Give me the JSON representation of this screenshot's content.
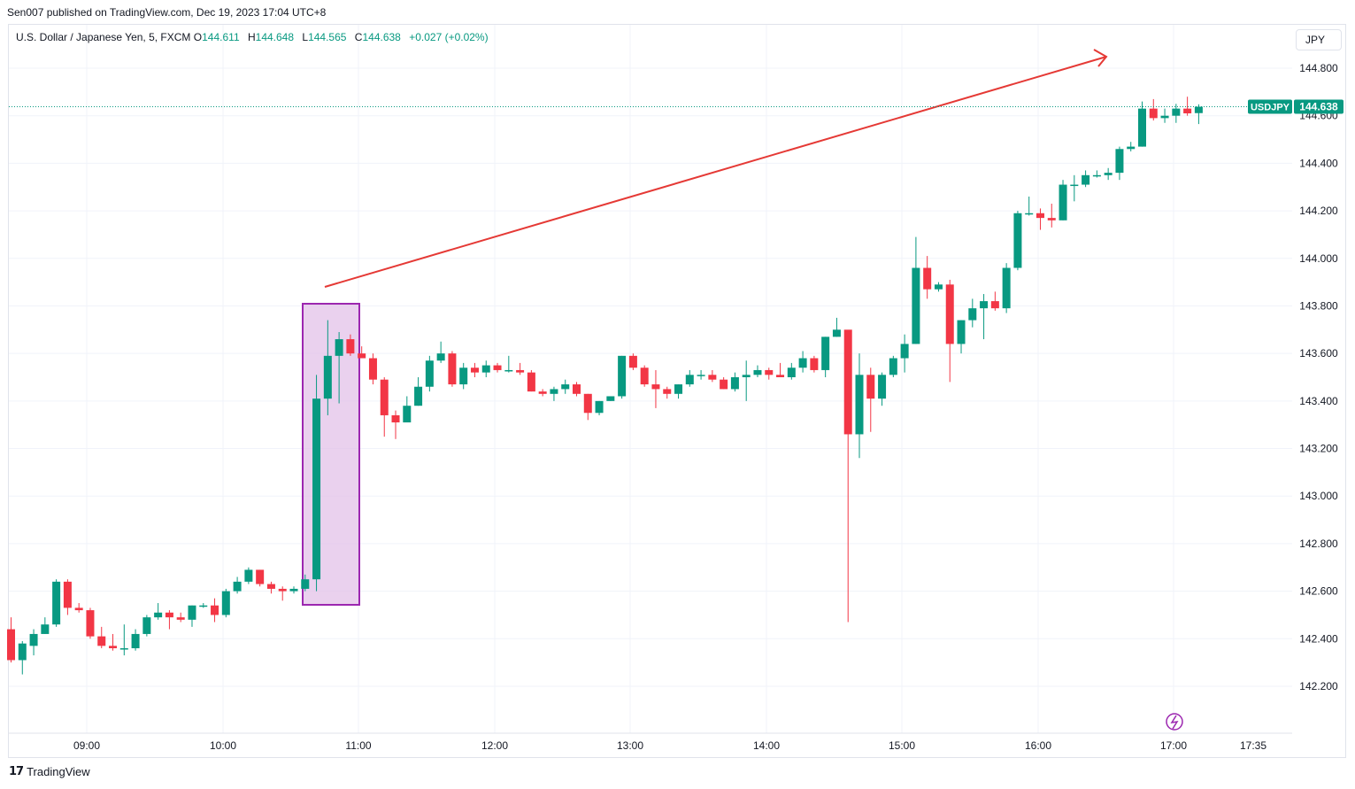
{
  "header": {
    "published_by": "Sen007 published on TradingView.com, Dec 19, 2023 17:04 UTC+8"
  },
  "legend": {
    "instrument": "U.S. Dollar / Japanese Yen, 5, FXCM",
    "open_label": "O",
    "open": "144.611",
    "high_label": "H",
    "high": "144.648",
    "low_label": "L",
    "low": "144.565",
    "close_label": "C",
    "close": "144.638",
    "change": "+0.027 (+0.02%)"
  },
  "currency_button": "JPY",
  "footer": {
    "logo": "17",
    "brand": "TradingView"
  },
  "colors": {
    "up": "#089981",
    "down": "#f23645",
    "grid": "#f0f3fa",
    "arrow": "#e53935",
    "box_border": "#9c27b0",
    "box_fill": "#e1bee7",
    "price_tag": "#089981"
  },
  "chart_data": {
    "type": "candlestick",
    "symbol_tag": "USDJPY",
    "last_price": "144.638",
    "ylim": [
      142.0,
      145.0
    ],
    "y_ticks": [
      "142.200",
      "142.400",
      "142.600",
      "142.800",
      "143.000",
      "143.200",
      "143.400",
      "143.600",
      "143.800",
      "144.000",
      "144.200",
      "144.400",
      "144.600",
      "144.800"
    ],
    "x_ticks": [
      "09:00",
      "10:00",
      "11:00",
      "12:00",
      "13:00",
      "14:00",
      "15:00",
      "16:00",
      "17:00",
      "17:35"
    ],
    "candles": [
      [
        142.44,
        142.49,
        142.3,
        142.31
      ],
      [
        142.31,
        142.39,
        142.25,
        142.38
      ],
      [
        142.37,
        142.44,
        142.33,
        142.42
      ],
      [
        142.42,
        142.49,
        142.42,
        142.46
      ],
      [
        142.46,
        142.65,
        142.45,
        142.64
      ],
      [
        142.64,
        142.65,
        142.5,
        142.53
      ],
      [
        142.53,
        142.55,
        142.51,
        142.52
      ],
      [
        142.52,
        142.53,
        142.4,
        142.41
      ],
      [
        142.41,
        142.45,
        142.36,
        142.37
      ],
      [
        142.37,
        142.42,
        142.35,
        142.36
      ],
      [
        142.36,
        142.46,
        142.33,
        142.36
      ],
      [
        142.36,
        142.44,
        142.35,
        142.42
      ],
      [
        142.42,
        142.5,
        142.41,
        142.49
      ],
      [
        142.49,
        142.55,
        142.48,
        142.51
      ],
      [
        142.51,
        142.52,
        142.44,
        142.49
      ],
      [
        142.49,
        142.51,
        142.47,
        142.48
      ],
      [
        142.48,
        142.54,
        142.45,
        142.54
      ],
      [
        142.54,
        142.55,
        142.53,
        142.54
      ],
      [
        142.54,
        142.57,
        142.47,
        142.5
      ],
      [
        142.5,
        142.61,
        142.49,
        142.6
      ],
      [
        142.6,
        142.66,
        142.59,
        142.64
      ],
      [
        142.64,
        142.7,
        142.63,
        142.69
      ],
      [
        142.69,
        142.69,
        142.62,
        142.63
      ],
      [
        142.63,
        142.64,
        142.59,
        142.61
      ],
      [
        142.61,
        142.62,
        142.56,
        142.6
      ],
      [
        142.6,
        142.62,
        142.59,
        142.61
      ],
      [
        142.61,
        142.67,
        142.6,
        142.65
      ],
      [
        142.65,
        143.51,
        142.6,
        143.41
      ],
      [
        143.41,
        143.74,
        143.34,
        143.59
      ],
      [
        143.59,
        143.69,
        143.39,
        143.66
      ],
      [
        143.66,
        143.68,
        143.59,
        143.6
      ],
      [
        143.6,
        143.63,
        143.58,
        143.58
      ],
      [
        143.58,
        143.6,
        143.47,
        143.49
      ],
      [
        143.49,
        143.5,
        143.25,
        143.34
      ],
      [
        143.34,
        143.36,
        143.24,
        143.31
      ],
      [
        143.31,
        143.42,
        143.31,
        143.38
      ],
      [
        143.38,
        143.5,
        143.38,
        143.46
      ],
      [
        143.46,
        143.59,
        143.44,
        143.57
      ],
      [
        143.57,
        143.65,
        143.56,
        143.6
      ],
      [
        143.6,
        143.61,
        143.46,
        143.47
      ],
      [
        143.47,
        143.56,
        143.45,
        143.54
      ],
      [
        143.54,
        143.56,
        143.5,
        143.52
      ],
      [
        143.52,
        143.57,
        143.5,
        143.55
      ],
      [
        143.55,
        143.56,
        143.52,
        143.53
      ],
      [
        143.53,
        143.59,
        143.52,
        143.53
      ],
      [
        143.53,
        143.56,
        143.51,
        143.52
      ],
      [
        143.52,
        143.53,
        143.44,
        143.44
      ],
      [
        143.44,
        143.45,
        143.42,
        143.43
      ],
      [
        143.43,
        143.46,
        143.4,
        143.45
      ],
      [
        143.45,
        143.49,
        143.43,
        143.47
      ],
      [
        143.47,
        143.48,
        143.42,
        143.43
      ],
      [
        143.43,
        143.43,
        143.32,
        143.35
      ],
      [
        143.35,
        143.4,
        143.34,
        143.4
      ],
      [
        143.4,
        143.42,
        143.4,
        143.42
      ],
      [
        143.42,
        143.59,
        143.41,
        143.59
      ],
      [
        143.59,
        143.6,
        143.53,
        143.54
      ],
      [
        143.54,
        143.55,
        143.46,
        143.47
      ],
      [
        143.47,
        143.53,
        143.37,
        143.45
      ],
      [
        143.45,
        143.46,
        143.41,
        143.43
      ],
      [
        143.43,
        143.47,
        143.41,
        143.47
      ],
      [
        143.47,
        143.53,
        143.46,
        143.51
      ],
      [
        143.51,
        143.53,
        143.49,
        143.51
      ],
      [
        143.51,
        143.53,
        143.48,
        143.49
      ],
      [
        143.49,
        143.5,
        143.45,
        143.45
      ],
      [
        143.45,
        143.52,
        143.44,
        143.5
      ],
      [
        143.5,
        143.57,
        143.4,
        143.51
      ],
      [
        143.51,
        143.55,
        143.5,
        143.53
      ],
      [
        143.53,
        143.54,
        143.49,
        143.51
      ],
      [
        143.51,
        143.56,
        143.5,
        143.5
      ],
      [
        143.5,
        143.56,
        143.49,
        143.54
      ],
      [
        143.54,
        143.61,
        143.52,
        143.58
      ],
      [
        143.58,
        143.59,
        143.52,
        143.53
      ],
      [
        143.53,
        143.67,
        143.5,
        143.67
      ],
      [
        143.67,
        143.75,
        143.67,
        143.7
      ],
      [
        143.7,
        143.69,
        142.47,
        143.26
      ],
      [
        143.26,
        143.6,
        143.16,
        143.51
      ],
      [
        143.51,
        143.54,
        143.27,
        143.41
      ],
      [
        143.41,
        143.52,
        143.38,
        143.51
      ],
      [
        143.51,
        143.59,
        143.5,
        143.58
      ],
      [
        143.58,
        143.68,
        143.52,
        143.64
      ],
      [
        143.64,
        144.09,
        143.64,
        143.96
      ],
      [
        143.96,
        144.01,
        143.83,
        143.87
      ],
      [
        143.87,
        143.9,
        143.86,
        143.89
      ],
      [
        143.89,
        143.91,
        143.48,
        143.64
      ],
      [
        143.64,
        143.74,
        143.6,
        143.74
      ],
      [
        143.74,
        143.83,
        143.71,
        143.79
      ],
      [
        143.79,
        143.85,
        143.66,
        143.82
      ],
      [
        143.82,
        143.86,
        143.78,
        143.79
      ],
      [
        143.79,
        143.98,
        143.77,
        143.96
      ],
      [
        143.96,
        144.2,
        143.95,
        144.19
      ],
      [
        144.19,
        144.26,
        144.18,
        144.19
      ],
      [
        144.19,
        144.21,
        144.12,
        144.17
      ],
      [
        144.17,
        144.23,
        144.13,
        144.16
      ],
      [
        144.16,
        144.33,
        144.16,
        144.31
      ],
      [
        144.31,
        144.35,
        144.24,
        144.31
      ],
      [
        144.31,
        144.37,
        144.3,
        144.35
      ],
      [
        144.35,
        144.37,
        144.34,
        144.35
      ],
      [
        144.35,
        144.38,
        144.33,
        144.36
      ],
      [
        144.36,
        144.47,
        144.33,
        144.46
      ],
      [
        144.46,
        144.49,
        144.45,
        144.47
      ],
      [
        144.47,
        144.66,
        144.47,
        144.63
      ],
      [
        144.63,
        144.67,
        144.58,
        144.59
      ],
      [
        144.59,
        144.63,
        144.57,
        144.6
      ],
      [
        144.6,
        144.65,
        144.57,
        144.63
      ],
      [
        144.63,
        144.68,
        144.6,
        144.61
      ],
      [
        144.611,
        144.648,
        144.565,
        144.638
      ]
    ]
  }
}
